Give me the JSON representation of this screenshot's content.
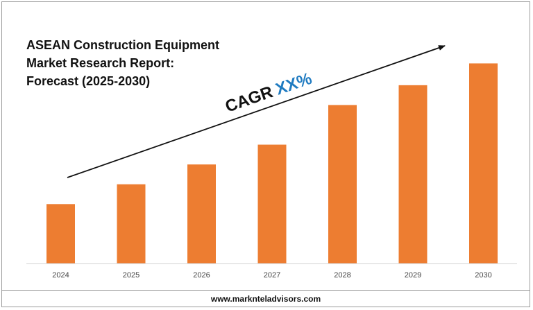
{
  "chart_data": {
    "type": "bar",
    "title": "ASEAN Construction Equipment Market Research Report: Forecast (2025-2030)",
    "categories": [
      "2024",
      "2025",
      "2026",
      "2027",
      "2028",
      "2029",
      "2030"
    ],
    "values": [
      30,
      40,
      50,
      60,
      80,
      90,
      101
    ],
    "ylim": [
      0,
      105
    ],
    "grid": false,
    "legend": "none",
    "annotation": {
      "prefix": "CAGR",
      "value": "XX%",
      "trend_arrow": "up"
    },
    "colors": {
      "bar": "#ED7D31",
      "annotation_prefix": "#111111",
      "annotation_value": "#1F7BC1",
      "arrow": "#111111"
    }
  },
  "footer": {
    "website": "www.marknteladvisors.com"
  }
}
